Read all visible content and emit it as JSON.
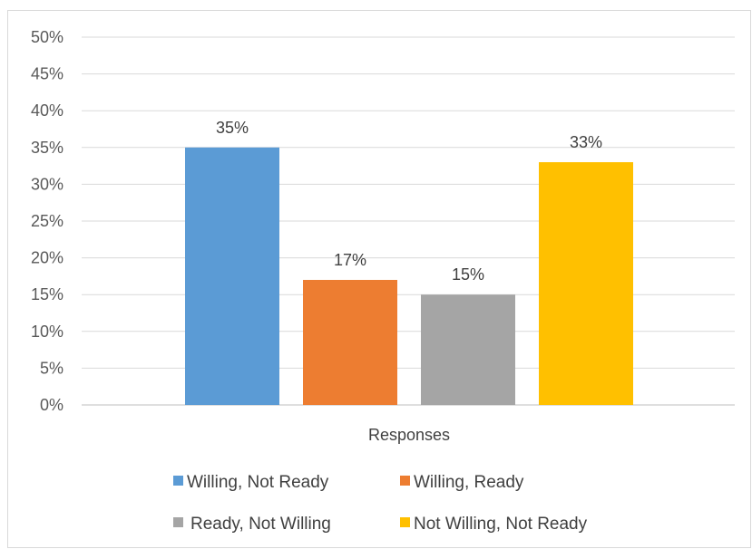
{
  "chart_data": {
    "type": "bar",
    "title": "",
    "xlabel": "",
    "ylabel": "",
    "categories": [
      "Responses"
    ],
    "series": [
      {
        "name": "Willing, Not Ready",
        "values": [
          35
        ],
        "color": "#5b9bd5",
        "data_label": "35%"
      },
      {
        "name": "Willing, Ready",
        "values": [
          17
        ],
        "color": "#ed7d31",
        "data_label": "17%"
      },
      {
        "name": "Ready, Not Willing",
        "values": [
          15
        ],
        "color": "#a5a5a5",
        "data_label": "15%"
      },
      {
        "name": "Not Willing, Not Ready",
        "values": [
          33
        ],
        "color": "#ffc000",
        "data_label": "33%"
      }
    ],
    "ylim": [
      0,
      50
    ],
    "yticks": [
      "0%",
      "5%",
      "10%",
      "15%",
      "20%",
      "25%",
      "30%",
      "35%",
      "40%",
      "45%",
      "50%"
    ],
    "grid": true,
    "legend_position": "bottom"
  }
}
